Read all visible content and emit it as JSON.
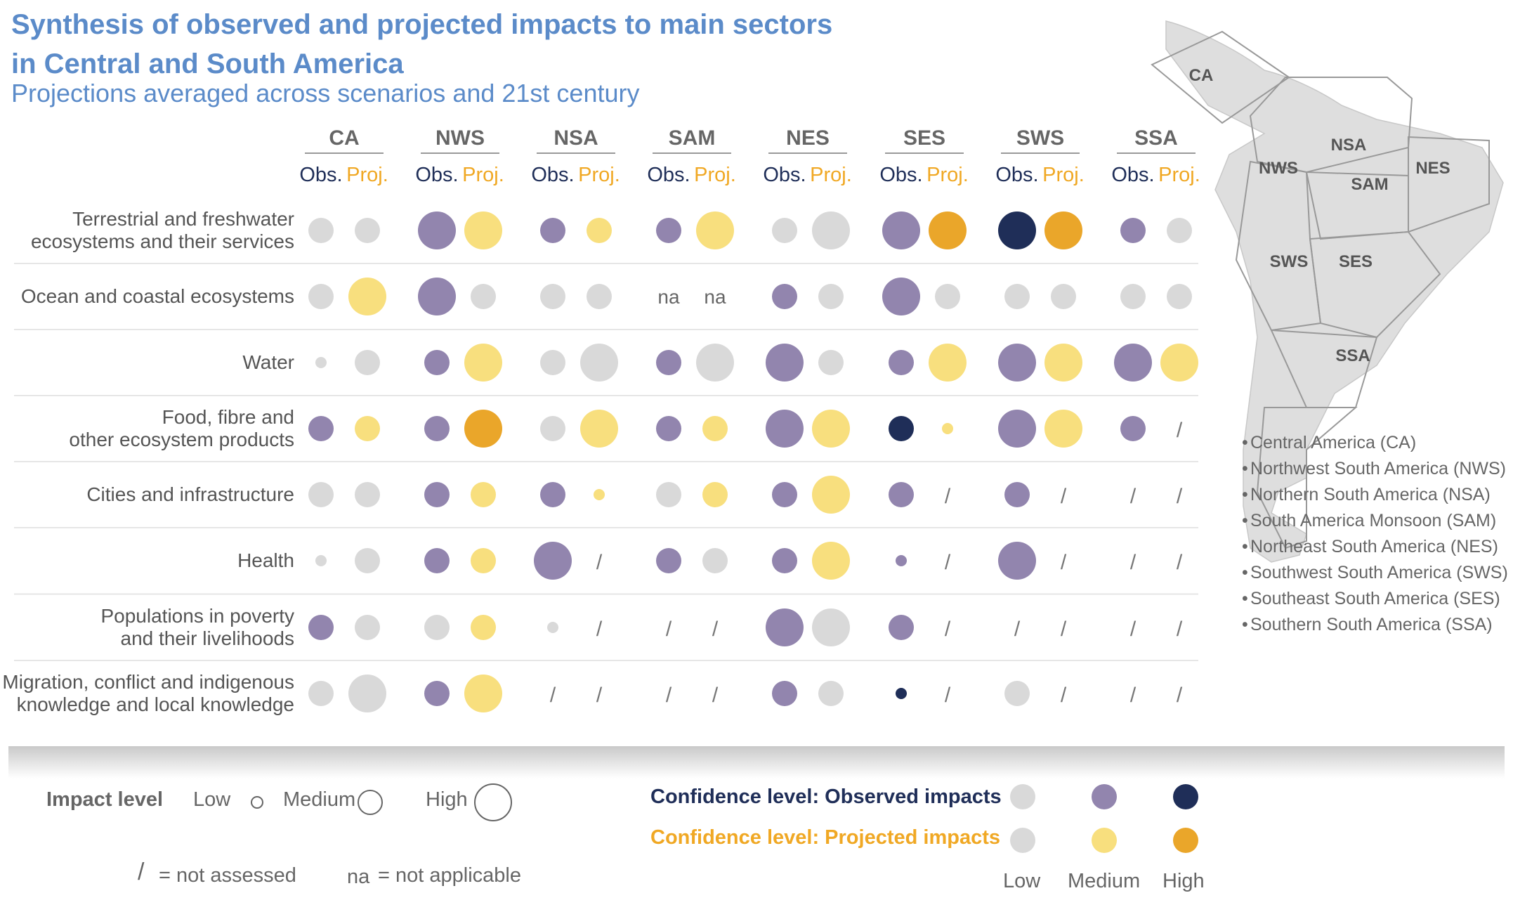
{
  "header": {
    "title_line1": "Synthesis of observed and projected impacts to main sectors",
    "title_line2": "in Central and South America",
    "subtitle": "Projections averaged across scenarios and 21st century"
  },
  "chart_data": {
    "type": "dot-matrix",
    "regions": [
      "CA",
      "NWS",
      "NSA",
      "SAM",
      "NES",
      "SES",
      "SWS",
      "SSA"
    ],
    "obs_label": "Obs.",
    "proj_label": "Proj.",
    "sectors": [
      "Terrestrial and freshwater\necosystems and their services",
      "Ocean and coastal ecosystems",
      "Water",
      "Food, fibre and\nother ecosystem products",
      "Cities and infrastructure",
      "Health",
      "Populations in poverty\nand their livelihoods",
      "Migration, conflict and indigenous\nknowledge and local knowledge"
    ],
    "encoding": "impact level / confidence level; N = not assessed; NA = not applicable; impact: S=Low, M=Medium, L=High; confidence: l=Low, m=Medium, h=High",
    "cells": [
      [
        [
          "M",
          "l"
        ],
        [
          "M",
          "l"
        ],
        [
          "L",
          "m"
        ],
        [
          "L",
          "m"
        ],
        [
          "M",
          "m"
        ],
        [
          "M",
          "m"
        ],
        [
          "M",
          "m"
        ],
        [
          "L",
          "m"
        ],
        [
          "M",
          "l"
        ],
        [
          "L",
          "l"
        ],
        [
          "L",
          "m"
        ],
        [
          "L",
          "h"
        ],
        [
          "L",
          "h"
        ],
        [
          "L",
          "h"
        ],
        [
          "M",
          "m"
        ],
        [
          "M",
          "l"
        ]
      ],
      [
        [
          "M",
          "l"
        ],
        [
          "L",
          "m"
        ],
        [
          "L",
          "m"
        ],
        [
          "M",
          "l"
        ],
        [
          "M",
          "l"
        ],
        [
          "M",
          "l"
        ],
        [
          "NA",
          ""
        ],
        [
          "NA",
          ""
        ],
        [
          "M",
          "m"
        ],
        [
          "M",
          "l"
        ],
        [
          "L",
          "m"
        ],
        [
          "M",
          "l"
        ],
        [
          "M",
          "l"
        ],
        [
          "M",
          "l"
        ],
        [
          "M",
          "l"
        ],
        [
          "M",
          "l"
        ]
      ],
      [
        [
          "S",
          "l"
        ],
        [
          "M",
          "l"
        ],
        [
          "M",
          "m"
        ],
        [
          "L",
          "m"
        ],
        [
          "M",
          "l"
        ],
        [
          "L",
          "l"
        ],
        [
          "M",
          "m"
        ],
        [
          "L",
          "l"
        ],
        [
          "L",
          "m"
        ],
        [
          "M",
          "l"
        ],
        [
          "M",
          "m"
        ],
        [
          "L",
          "m"
        ],
        [
          "L",
          "m"
        ],
        [
          "L",
          "m"
        ],
        [
          "L",
          "m"
        ],
        [
          "L",
          "m"
        ]
      ],
      [
        [
          "M",
          "m"
        ],
        [
          "M",
          "m"
        ],
        [
          "M",
          "m"
        ],
        [
          "L",
          "h"
        ],
        [
          "M",
          "l"
        ],
        [
          "L",
          "m"
        ],
        [
          "M",
          "m"
        ],
        [
          "M",
          "m"
        ],
        [
          "L",
          "m"
        ],
        [
          "L",
          "m"
        ],
        [
          "M",
          "h"
        ],
        [
          "S",
          "m"
        ],
        [
          "L",
          "m"
        ],
        [
          "L",
          "m"
        ],
        [
          "M",
          "m"
        ],
        [
          "N",
          ""
        ]
      ],
      [
        [
          "M",
          "l"
        ],
        [
          "M",
          "l"
        ],
        [
          "M",
          "m"
        ],
        [
          "M",
          "m"
        ],
        [
          "M",
          "m"
        ],
        [
          "S",
          "m"
        ],
        [
          "M",
          "l"
        ],
        [
          "M",
          "m"
        ],
        [
          "M",
          "m"
        ],
        [
          "L",
          "m"
        ],
        [
          "M",
          "m"
        ],
        [
          "N",
          ""
        ],
        [
          "M",
          "m"
        ],
        [
          "N",
          ""
        ],
        [
          "N",
          ""
        ],
        [
          "N",
          ""
        ]
      ],
      [
        [
          "S",
          "l"
        ],
        [
          "M",
          "l"
        ],
        [
          "M",
          "m"
        ],
        [
          "M",
          "m"
        ],
        [
          "L",
          "m"
        ],
        [
          "N",
          ""
        ],
        [
          "M",
          "m"
        ],
        [
          "M",
          "l"
        ],
        [
          "M",
          "m"
        ],
        [
          "L",
          "m"
        ],
        [
          "S",
          "m"
        ],
        [
          "N",
          ""
        ],
        [
          "L",
          "m"
        ],
        [
          "N",
          ""
        ],
        [
          "N",
          ""
        ],
        [
          "N",
          ""
        ]
      ],
      [
        [
          "M",
          "m"
        ],
        [
          "M",
          "l"
        ],
        [
          "M",
          "l"
        ],
        [
          "M",
          "m"
        ],
        [
          "S",
          "l"
        ],
        [
          "N",
          ""
        ],
        [
          "N",
          ""
        ],
        [
          "N",
          ""
        ],
        [
          "L",
          "m"
        ],
        [
          "L",
          "l"
        ],
        [
          "M",
          "m"
        ],
        [
          "N",
          ""
        ],
        [
          "N",
          ""
        ],
        [
          "N",
          ""
        ],
        [
          "N",
          ""
        ],
        [
          "N",
          ""
        ]
      ],
      [
        [
          "M",
          "l"
        ],
        [
          "L",
          "l"
        ],
        [
          "M",
          "m"
        ],
        [
          "L",
          "m"
        ],
        [
          "N",
          ""
        ],
        [
          "N",
          ""
        ],
        [
          "N",
          ""
        ],
        [
          "N",
          ""
        ],
        [
          "M",
          "m"
        ],
        [
          "M",
          "l"
        ],
        [
          "S",
          "h"
        ],
        [
          "N",
          ""
        ],
        [
          "M",
          "l"
        ],
        [
          "N",
          ""
        ],
        [
          "N",
          ""
        ],
        [
          "N",
          ""
        ]
      ]
    ]
  },
  "map": {
    "labels": [
      "CA",
      "NSA",
      "NWS",
      "SAM",
      "NES",
      "SWS",
      "SES",
      "SSA"
    ]
  },
  "region_list": [
    "Central America (CA)",
    "Northwest South America  (NWS)",
    "Northern South America (NSA)",
    "South America Monsoon (SAM)",
    "Northeast South America (NES)",
    "Southwest South America (SWS)",
    "Southeast South America (SES)",
    "Southern South America (SSA)"
  ],
  "legend": {
    "impact_title": "Impact level",
    "low": "Low",
    "medium": "Medium",
    "high": "High",
    "not_assessed_symbol": "/",
    "not_assessed": "= not assessed",
    "na_symbol": "na",
    "not_applicable": "= not applicable",
    "conf_observed": "Confidence level: Observed impacts",
    "conf_projected": "Confidence level: Projected impacts",
    "conf_low": "Low",
    "conf_medium": "Medium",
    "conf_high": "High"
  },
  "colors": {
    "title": "#5b8bc9",
    "obs_low": "#d9d9d9",
    "obs_medium": "#9285ae",
    "obs_high": "#1f2e58",
    "proj_low": "#d9d9d9",
    "proj_medium": "#f8df7e",
    "proj_high": "#eaa62a",
    "observed_label": "#1f2e58",
    "projected_label": "#f0a824"
  }
}
